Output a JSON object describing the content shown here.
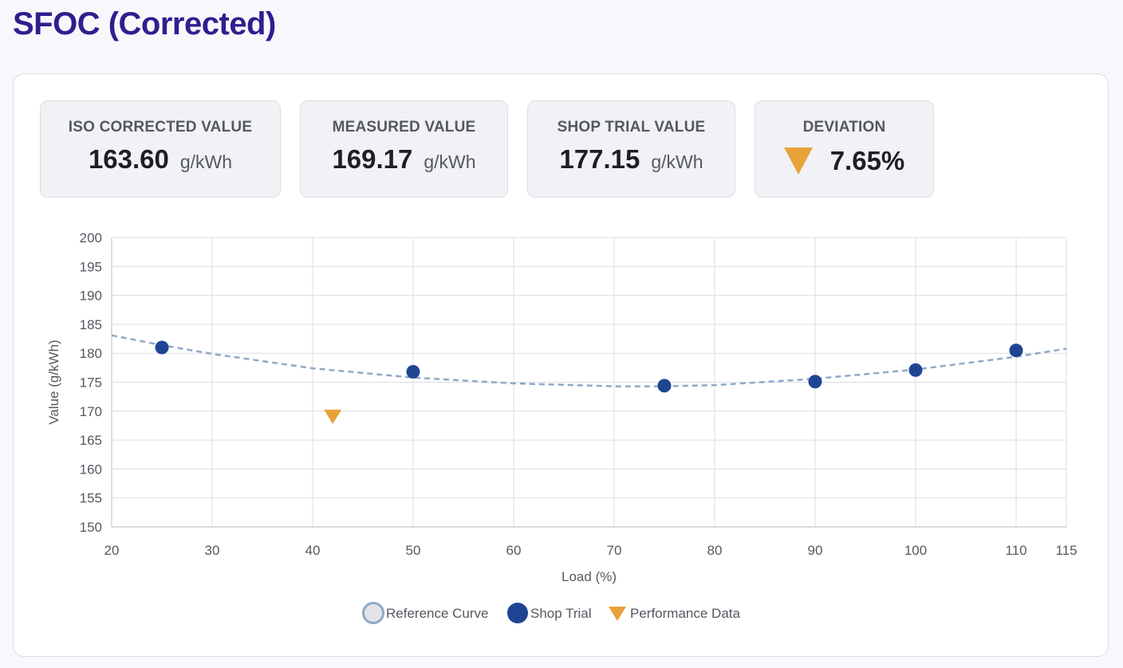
{
  "page": {
    "title": "SFOC (Corrected)"
  },
  "metrics": [
    {
      "label": "ISO CORRECTED VALUE",
      "value": "163.60",
      "unit": "g/kWh"
    },
    {
      "label": "MEASURED VALUE",
      "value": "169.17",
      "unit": "g/kWh"
    },
    {
      "label": "SHOP TRIAL VALUE",
      "value": "177.15",
      "unit": "g/kWh"
    },
    {
      "label": "DEVIATION",
      "value": "7.65%",
      "direction": "down",
      "icon": "triangle-down-icon",
      "color": "#e8a23a"
    }
  ],
  "colors": {
    "title": "#2e1f8f",
    "shop_trial": "#1f4592",
    "performance": "#e8a23a",
    "reference_curve": "#8fa8c8",
    "grid": "#dcdde2"
  },
  "chart_data": {
    "type": "scatter",
    "xlabel": "Load (%)",
    "ylabel": "Value (g/kWh)",
    "xlim": [
      20,
      115
    ],
    "ylim": [
      150,
      200
    ],
    "x_ticks": [
      20,
      30,
      40,
      50,
      60,
      70,
      80,
      90,
      100,
      110,
      115
    ],
    "y_ticks": [
      150,
      155,
      160,
      165,
      170,
      175,
      180,
      185,
      190,
      195,
      200
    ],
    "grid": true,
    "legend_position": "bottom-center",
    "series": [
      {
        "name": "Reference Curve",
        "kind": "line",
        "style": "dashed",
        "x": [
          20,
          25,
          30,
          40,
          50,
          60,
          70,
          75,
          80,
          90,
          100,
          110,
          115
        ],
        "y": [
          183.1,
          181.4,
          179.9,
          177.4,
          175.8,
          174.8,
          174.3,
          174.3,
          174.5,
          175.6,
          177.2,
          179.4,
          180.8
        ]
      },
      {
        "name": "Shop Trial",
        "kind": "scatter",
        "marker": "circle",
        "x": [
          25,
          50,
          75,
          90,
          100,
          110
        ],
        "y": [
          181.0,
          176.8,
          174.4,
          175.1,
          177.1,
          180.5
        ]
      },
      {
        "name": "Performance Data",
        "kind": "scatter",
        "marker": "triangle-down",
        "x": [
          42
        ],
        "y": [
          169.17
        ]
      }
    ]
  }
}
